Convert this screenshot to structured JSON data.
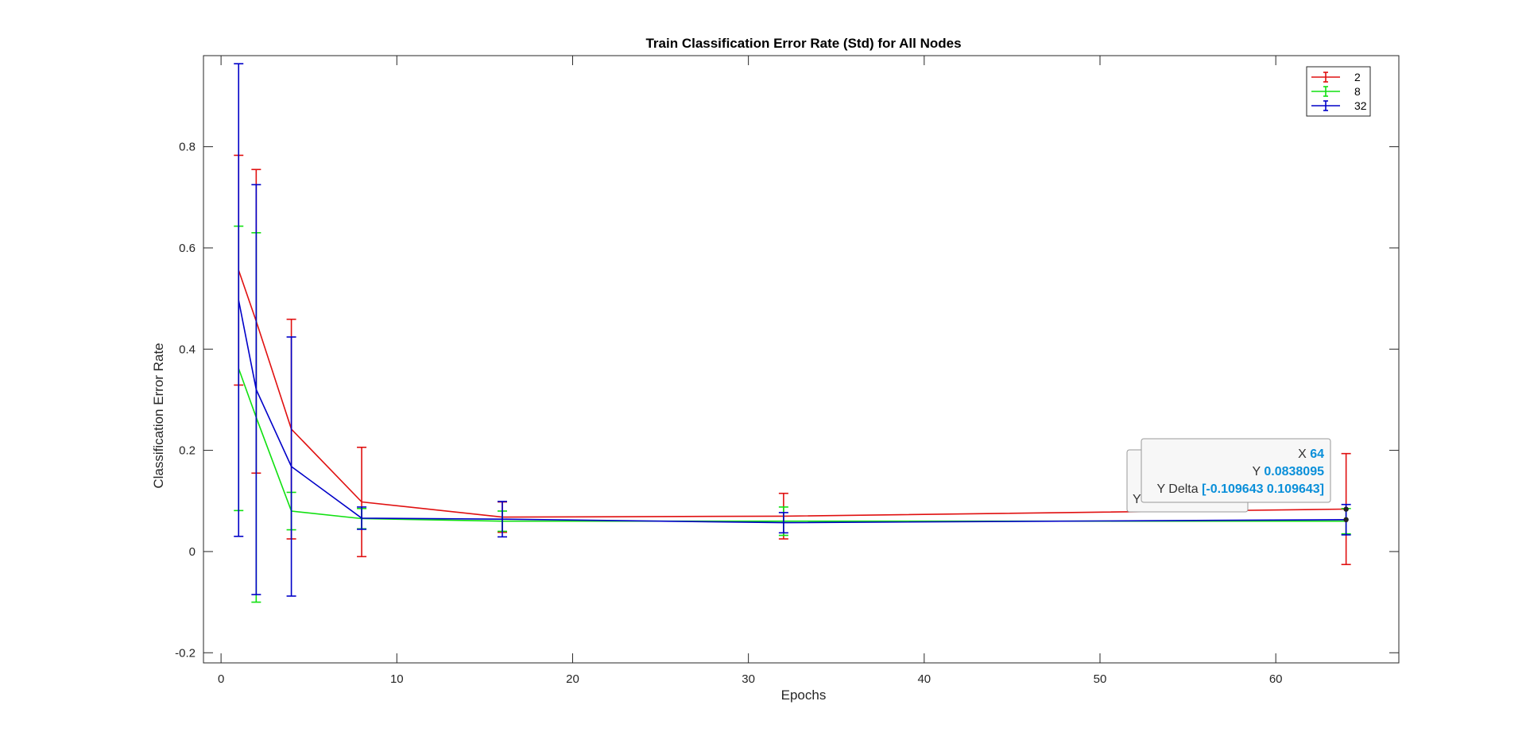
{
  "chart_data": {
    "type": "line",
    "title": "Train Classification Error Rate (Std) for All Nodes",
    "xlabel": "Epochs",
    "ylabel": "Classification Error Rate",
    "xlim": [
      -1,
      67
    ],
    "ylim": [
      -0.22,
      0.98
    ],
    "xticks": [
      0,
      10,
      20,
      30,
      40,
      50,
      60
    ],
    "yticks": [
      -0.2,
      0,
      0.2,
      0.4,
      0.6,
      0.8
    ],
    "x": [
      1,
      2,
      4,
      8,
      16,
      32,
      64
    ],
    "grid": false,
    "legend_position": "top-right",
    "series": [
      {
        "name": "2",
        "color": "#e01010",
        "values": [
          0.556,
          0.455,
          0.242,
          0.098,
          0.068,
          0.07,
          0.084
        ],
        "std": [
          0.227,
          0.3,
          0.217,
          0.108,
          0.03,
          0.045,
          0.1096
        ]
      },
      {
        "name": "8",
        "color": "#10e010",
        "values": [
          0.362,
          0.265,
          0.08,
          0.065,
          0.06,
          0.06,
          0.06
        ],
        "std": [
          0.281,
          0.365,
          0.037,
          0.02,
          0.02,
          0.028,
          0.025
        ]
      },
      {
        "name": "32",
        "color": "#0000c8",
        "values": [
          0.497,
          0.32,
          0.168,
          0.066,
          0.064,
          0.057,
          0.063
        ],
        "std": [
          0.467,
          0.405,
          0.256,
          0.022,
          0.035,
          0.02,
          0.03
        ]
      }
    ],
    "datatip": {
      "x_label": "X",
      "x_value": "64",
      "y_label": "Y",
      "y_value": "0.0838095",
      "delta_label": "Y Delta",
      "delta_value": "[-0.109643 0.109643]",
      "hidden_label": "Y"
    }
  }
}
